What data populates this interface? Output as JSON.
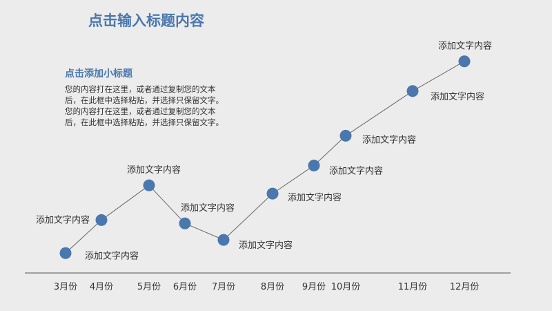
{
  "slide": {
    "title": "点击输入标题内容",
    "subtitle": "点击添加小标题",
    "body_lines": [
      "您的内容打在这里，或者通过复制您的文本",
      "后，在此框中选择粘贴，并选择只保留文字。",
      "您的内容打在这里，或者通过复制您的文本",
      "后，在此框中选择粘贴，并选择只保留文字。"
    ]
  },
  "chart_data": {
    "type": "line",
    "categories": [
      "3月份",
      "4月份",
      "5月份",
      "6月份",
      "7月份",
      "8月份",
      "9月份",
      "10月份",
      "11月份",
      "12月份"
    ],
    "values": [
      12,
      32,
      53,
      30,
      20,
      48,
      65,
      83,
      110,
      128
    ],
    "point_labels": [
      "添加文字内容",
      "添加文字内容",
      "添加文字内容",
      "添加文字内容",
      "添加文字内容",
      "添加文字内容",
      "添加文字内容",
      "添加文字内容",
      "添加文字内容",
      "添加文字内容"
    ],
    "title": "",
    "xlabel": "",
    "ylabel": "",
    "ylim": [
      0,
      140
    ],
    "grid": false,
    "legend": "none",
    "colors": {
      "marker": "#4a77ad",
      "line": "#666666",
      "axis": "#555555"
    }
  }
}
